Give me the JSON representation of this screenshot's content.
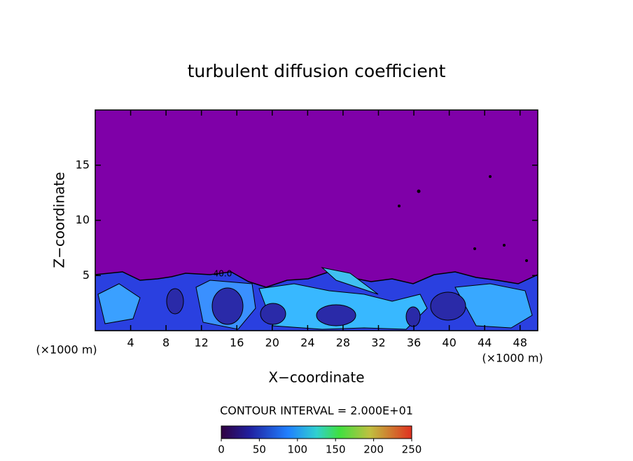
{
  "chart_data": {
    "type": "contour",
    "title": "turbulent diffusion coefficient",
    "x_label": "X−coordinate",
    "y_label": "Z−coordinate",
    "x_unit_left": "(×1000 m)",
    "x_unit_right": "(×1000 m)",
    "xlim": [
      0,
      50
    ],
    "xticks": [
      4,
      8,
      12,
      16,
      20,
      24,
      28,
      32,
      36,
      40,
      44,
      48
    ],
    "ylim": [
      0,
      20
    ],
    "yticks": [
      5,
      10,
      15
    ],
    "annotation": "40.0",
    "contour_interval": "CONTOUR INTERVAL = 2.000E+01",
    "colorbar": {
      "lim": [
        0,
        250
      ],
      "ticks": [
        0,
        50,
        100,
        150,
        200,
        250
      ]
    }
  }
}
